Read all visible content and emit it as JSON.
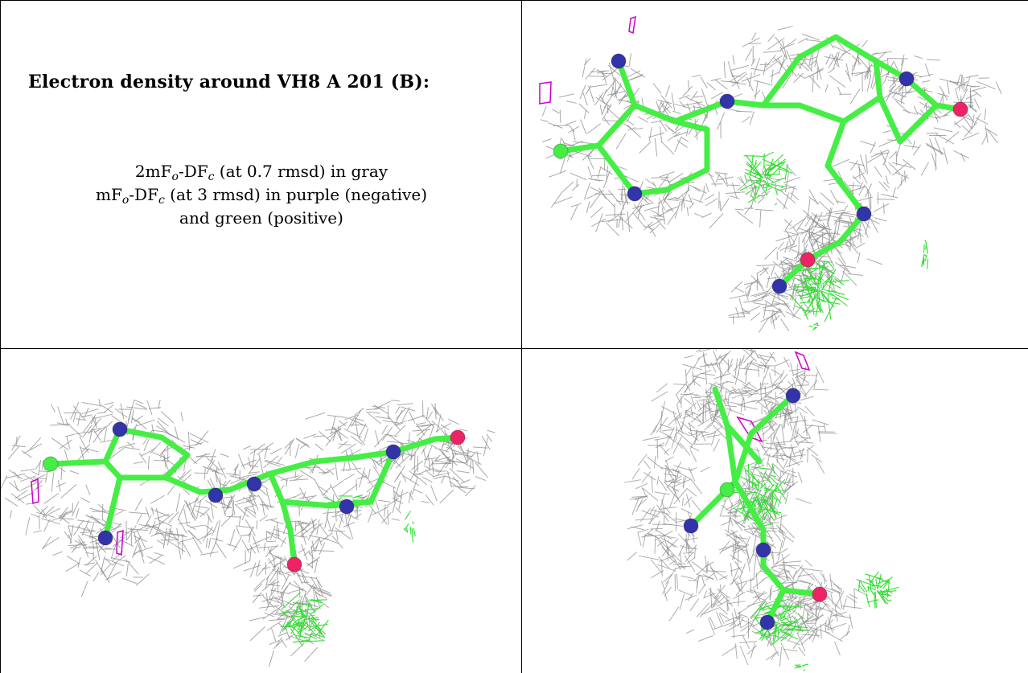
{
  "caption": {
    "title": "Electron density around VH8 A 201 (B):",
    "legend_lines": [
      {
        "pre": "2mF",
        "sub1": "o",
        "mid": "-DF",
        "sub2": "c",
        "post": " (at 0.7 rmsd) in gray"
      },
      {
        "pre": "mF",
        "sub1": "o",
        "mid": "-DF",
        "sub2": "c",
        "post": " (at 3 rmsd) in purple (negative)"
      },
      {
        "pre": "and green (positive)",
        "sub1": "",
        "mid": "",
        "sub2": "",
        "post": ""
      }
    ]
  },
  "colors": {
    "mesh_2fo": "#8c8c8c",
    "mesh_negative": "#cc00cc",
    "mesh_positive": "#33dd33",
    "carbon": "#44ee44",
    "nitrogen": "#3333aa",
    "oxygen": "#ee2266"
  },
  "panels": [
    {
      "view": "top-right"
    },
    {
      "view": "bottom-left"
    },
    {
      "view": "bottom-right"
    }
  ]
}
